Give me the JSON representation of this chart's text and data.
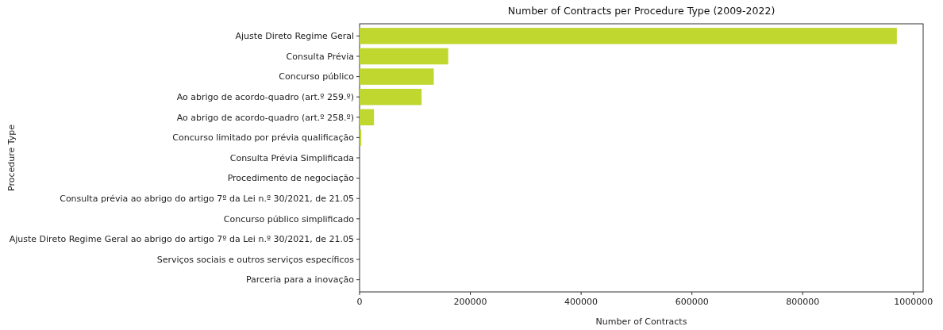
{
  "chart_data": {
    "type": "bar",
    "orientation": "horizontal",
    "title": "Number of Contracts per Procedure Type (2009-2022)",
    "xlabel": "Number of Contracts",
    "ylabel": "Procedure Type",
    "categories": [
      "Ajuste Direto Regime Geral",
      "Consulta Prévia",
      "Concurso público",
      "Ao abrigo de acordo-quadro (art.º 259.º)",
      "Ao abrigo de acordo-quadro (art.º 258.º)",
      "Concurso limitado por prévia qualificação",
      "Consulta Prévia Simplificada",
      "Procedimento de negociação",
      "Consulta prévia ao abrigo do artigo 7º da Lei n.º 30/2021, de 21.05",
      "Concurso público simplificado",
      "Ajuste Direto Regime Geral ao abrigo do artigo 7º da Lei n.º 30/2021, de 21.05",
      "Serviços sociais e outros serviços específicos",
      "Parceria para a inovação"
    ],
    "values": [
      970000,
      160000,
      134000,
      112000,
      26000,
      3000,
      0,
      0,
      0,
      0,
      0,
      0,
      0
    ],
    "color": "#c0d72f",
    "xlim": [
      0,
      1017500
    ],
    "xticks": [
      0,
      200000,
      400000,
      600000,
      800000,
      1000000
    ]
  }
}
